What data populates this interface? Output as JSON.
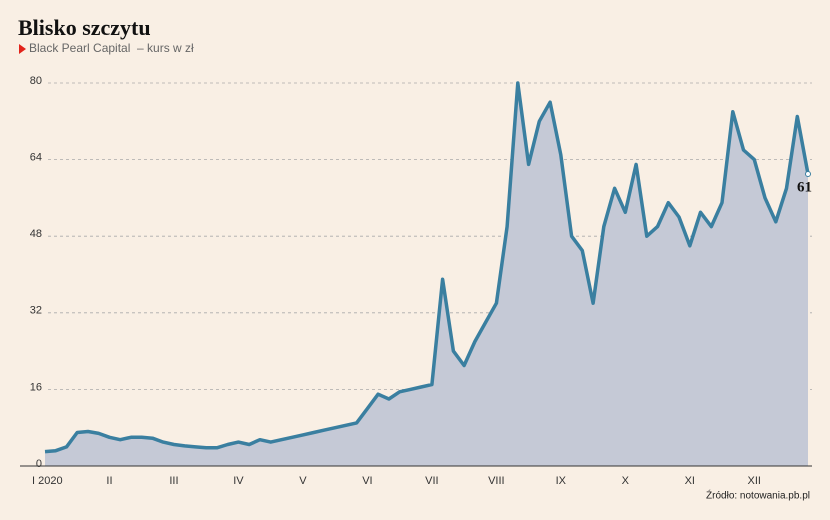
{
  "chart_data": {
    "type": "area",
    "title": "Blisko szczytu",
    "subtitle": "Black Pearl Capital  – kurs w zł",
    "source": "Źródło: notowania.pb.pl",
    "categories": [
      "I 2020",
      null,
      null,
      null,
      null,
      null,
      "II",
      null,
      null,
      null,
      null,
      null,
      "III",
      null,
      null,
      null,
      null,
      null,
      "IV",
      null,
      null,
      null,
      null,
      null,
      "V",
      null,
      null,
      null,
      null,
      null,
      "VI",
      null,
      null,
      null,
      null,
      null,
      "VII",
      null,
      null,
      null,
      null,
      null,
      "VIII",
      null,
      null,
      null,
      null,
      null,
      "IX",
      null,
      null,
      null,
      null,
      null,
      "X",
      null,
      null,
      null,
      null,
      null,
      "XI",
      null,
      null,
      null,
      null,
      null,
      "XII",
      null,
      null,
      null,
      null,
      null
    ],
    "series": [
      {
        "name": "Black Pearl Capital",
        "color": "#3a7fa0",
        "fill": "#c5c9d6",
        "values": [
          3,
          3.2,
          4,
          7,
          7.2,
          6.8,
          6,
          5.5,
          6,
          6,
          5.8,
          5,
          4.5,
          4.2,
          4,
          3.8,
          3.8,
          4.5,
          5,
          4.5,
          5.5,
          5,
          5.5,
          6,
          6.5,
          7,
          7.5,
          8,
          8.5,
          9,
          12,
          15,
          14,
          15.5,
          16,
          16.5,
          17,
          39,
          24,
          21,
          26,
          30,
          34,
          50,
          80,
          63,
          72,
          76,
          65,
          48,
          45,
          34,
          50,
          58,
          53,
          63,
          48,
          50,
          55,
          52,
          46,
          53,
          50,
          55,
          74,
          66,
          64,
          56,
          51,
          58,
          73,
          61
        ]
      }
    ],
    "ylim": [
      0,
      80
    ],
    "yticks": [
      0,
      16,
      32,
      48,
      64,
      80
    ],
    "grid": true
  }
}
